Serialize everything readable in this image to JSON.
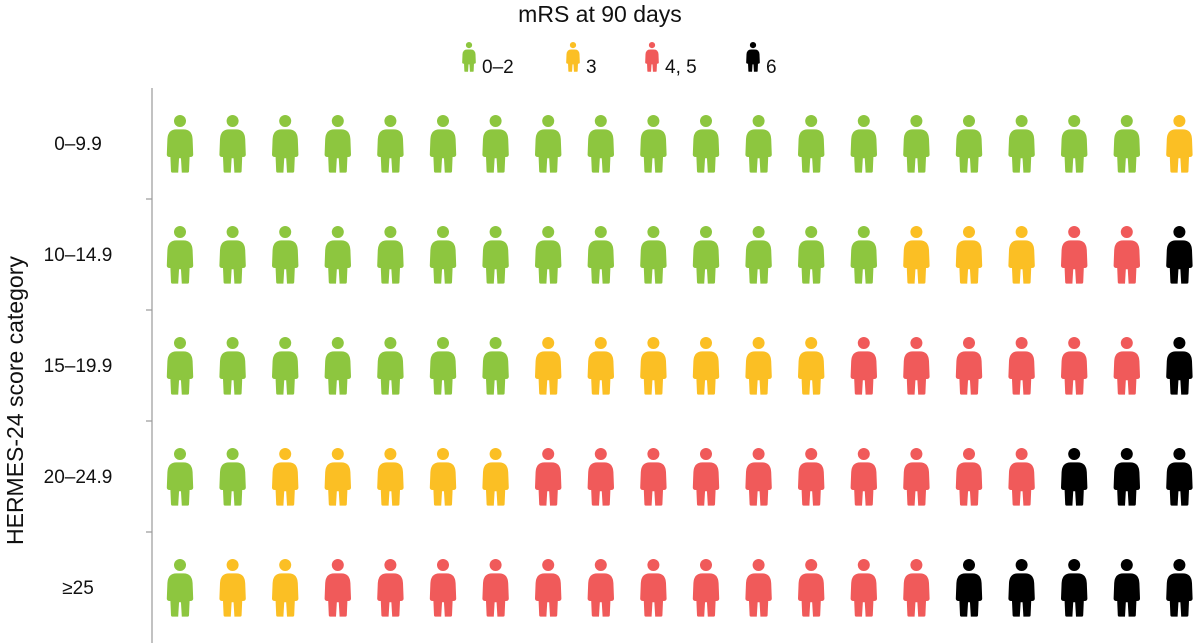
{
  "chart_data": {
    "type": "pictograph",
    "title": "mRS at 90 days",
    "ylabel": "HERMES-24 score category",
    "legend": [
      {
        "label": "0–2",
        "color": "#8dc63f"
      },
      {
        "label": "3",
        "color": "#fbbf24"
      },
      {
        "label": "4, 5",
        "color": "#f05a5a"
      },
      {
        "label": "6",
        "color": "#000000"
      }
    ],
    "legend_placement": "top-center",
    "icons_per_row": 20,
    "rows": [
      {
        "category": "0–9.9",
        "counts": [
          19,
          1,
          0,
          0
        ]
      },
      {
        "category": "10–14.9",
        "counts": [
          14,
          3,
          2,
          1
        ]
      },
      {
        "category": "15–19.9",
        "counts": [
          7,
          6,
          6,
          1
        ]
      },
      {
        "category": "20–24.9",
        "counts": [
          2,
          5,
          10,
          3
        ]
      },
      {
        "category": "≥25",
        "counts": [
          1,
          2,
          12,
          5
        ]
      }
    ]
  }
}
